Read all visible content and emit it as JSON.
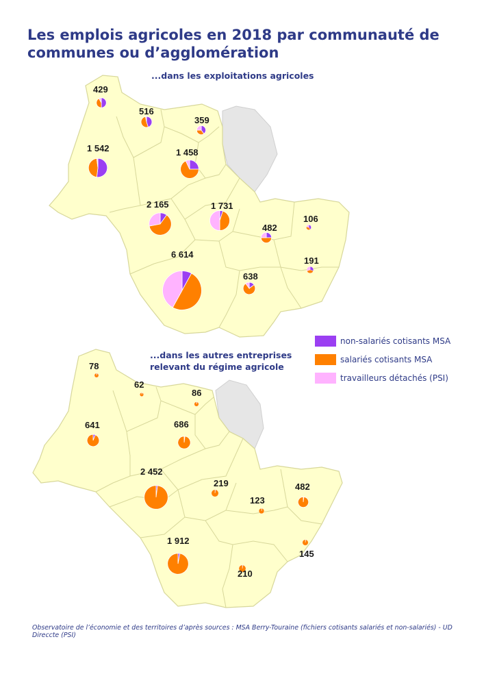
{
  "title": "Les emplois agricoles en 2018 par communauté de communes ou d’agglomération",
  "panel1": {
    "subtitle": "...dans les exploitations agricoles",
    "areas": [
      {
        "label": "429",
        "total": 429,
        "shares": [
          0.5,
          0.42,
          0.08
        ]
      },
      {
        "label": "516",
        "total": 516,
        "shares": [
          0.45,
          0.52,
          0.03
        ]
      },
      {
        "label": "359",
        "total": 359,
        "shares": [
          0.4,
          0.35,
          0.25
        ]
      },
      {
        "label": "1 542",
        "total": 1542,
        "shares": [
          0.52,
          0.46,
          0.02
        ]
      },
      {
        "label": "1 458",
        "total": 1458,
        "shares": [
          0.25,
          0.68,
          0.07
        ]
      },
      {
        "label": "2 165",
        "total": 2165,
        "shares": [
          0.1,
          0.62,
          0.28
        ]
      },
      {
        "label": "1 731",
        "total": 1731,
        "shares": [
          0.05,
          0.45,
          0.5
        ]
      },
      {
        "label": "482",
        "total": 482,
        "shares": [
          0.25,
          0.5,
          0.25
        ]
      },
      {
        "label": "106",
        "total": 106,
        "shares": [
          0.4,
          0.4,
          0.2
        ]
      },
      {
        "label": "191",
        "total": 191,
        "shares": [
          0.3,
          0.4,
          0.3
        ]
      },
      {
        "label": "6 614",
        "total": 6614,
        "shares": [
          0.08,
          0.5,
          0.42
        ]
      },
      {
        "label": "638",
        "total": 638,
        "shares": [
          0.15,
          0.75,
          0.1
        ]
      }
    ]
  },
  "panel2": {
    "subtitle": "...dans les autres entreprises relevant du régime agricole",
    "areas": [
      {
        "label": "78",
        "total": 78,
        "shares": [
          0.05,
          0.95,
          0
        ]
      },
      {
        "label": "62",
        "total": 62,
        "shares": [
          0.05,
          0.95,
          0
        ]
      },
      {
        "label": "86",
        "total": 86,
        "shares": [
          0.05,
          0.95,
          0
        ]
      },
      {
        "label": "641",
        "total": 641,
        "shares": [
          0.06,
          0.94,
          0
        ]
      },
      {
        "label": "686",
        "total": 686,
        "shares": [
          0.02,
          0.98,
          0
        ]
      },
      {
        "label": "2 452",
        "total": 2452,
        "shares": [
          0.02,
          0.98,
          0
        ]
      },
      {
        "label": "219",
        "total": 219,
        "shares": [
          0.03,
          0.97,
          0
        ]
      },
      {
        "label": "123",
        "total": 123,
        "shares": [
          0.03,
          0.97,
          0
        ]
      },
      {
        "label": "482",
        "total": 482,
        "shares": [
          0.02,
          0.98,
          0
        ]
      },
      {
        "label": "145",
        "total": 145,
        "shares": [
          0.03,
          0.97,
          0
        ]
      },
      {
        "label": "1 912",
        "total": 1912,
        "shares": [
          0.03,
          0.97,
          0
        ]
      },
      {
        "label": "210",
        "total": 210,
        "shares": [
          0.03,
          0.97,
          0
        ]
      }
    ]
  },
  "legend": [
    {
      "label": "non-salariés cotisants MSA",
      "color": "#9b3ff2"
    },
    {
      "label": "salariés cotisants MSA",
      "color": "#ff8000"
    },
    {
      "label": "travailleurs détachés (PSI)",
      "color": "#ffb3ff"
    }
  ],
  "colors": {
    "territory": "#ffffcc",
    "border": "#d7d79a",
    "outside": "#e6e6e6",
    "heading": "#2e3a87"
  },
  "source": "Observatoire de l’économie et des territoires d’après sources : MSA Berry-Touraine (fichiers cotisants salariés et non-salariés) - UD Direccte (PSI)"
}
